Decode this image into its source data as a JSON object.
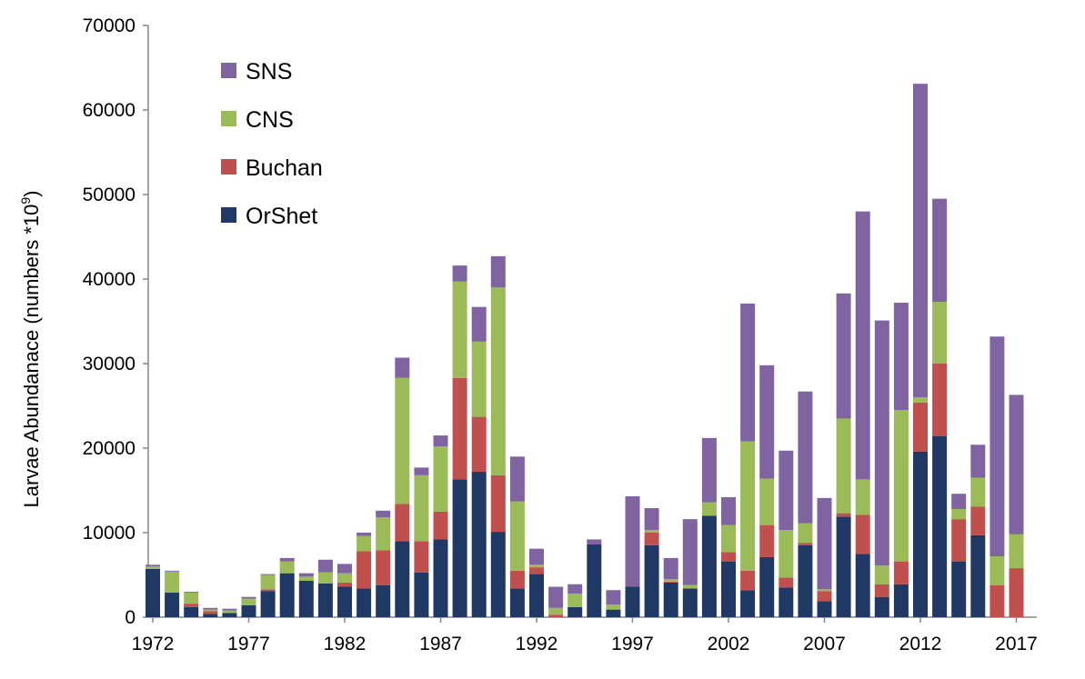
{
  "chart_data": {
    "type": "bar",
    "stacked": true,
    "title": "",
    "xlabel": "",
    "ylabel": "Larvae Abundanace (numbers *10",
    "ylabel_superscript": "9",
    "ylabel_suffix": ")",
    "ylim": [
      0,
      70000
    ],
    "yticks": [
      0,
      10000,
      20000,
      30000,
      40000,
      50000,
      60000,
      70000
    ],
    "xtick_labels": [
      "1972",
      "1977",
      "1982",
      "1987",
      "1992",
      "1997",
      "2002",
      "2007",
      "2012",
      "2017"
    ],
    "grid": false,
    "legend_position": "top-left",
    "categories": [
      1972,
      1973,
      1974,
      1975,
      1976,
      1977,
      1978,
      1979,
      1980,
      1981,
      1982,
      1983,
      1984,
      1985,
      1986,
      1987,
      1988,
      1989,
      1990,
      1991,
      1992,
      1993,
      1994,
      1995,
      1996,
      1997,
      1998,
      1999,
      2000,
      2001,
      2002,
      2003,
      2004,
      2005,
      2006,
      2007,
      2008,
      2009,
      2010,
      2011,
      2012,
      2013,
      2014,
      2015,
      2016,
      2017
    ],
    "series": [
      {
        "name": "OrShet",
        "color": "#1f3864",
        "values": [
          5700,
          2900,
          1200,
          400,
          500,
          1400,
          3100,
          5200,
          4300,
          4000,
          3600,
          3400,
          3800,
          9000,
          5300,
          9200,
          16300,
          17200,
          10100,
          3400,
          5100,
          0,
          1200,
          8600,
          900,
          3600,
          8500,
          4100,
          3400,
          12000,
          6600,
          3200,
          7100,
          3500,
          8500,
          1900,
          11900,
          7500,
          2400,
          3900,
          19600,
          21400,
          6600,
          9700,
          0,
          0
        ]
      },
      {
        "name": "Buchan",
        "color": "#c0504d",
        "values": [
          0,
          0,
          400,
          300,
          0,
          0,
          200,
          0,
          0,
          0,
          500,
          4400,
          4100,
          4400,
          3700,
          3300,
          12000,
          6500,
          6700,
          2100,
          800,
          300,
          0,
          0,
          0,
          0,
          1500,
          100,
          0,
          0,
          1100,
          2300,
          3800,
          1200,
          300,
          1200,
          400,
          4600,
          1500,
          2700,
          5800,
          8600,
          5000,
          3400,
          3800,
          5800
        ]
      },
      {
        "name": "CNS",
        "color": "#9bbb59",
        "values": [
          300,
          2500,
          1300,
          200,
          300,
          800,
          1700,
          1400,
          500,
          1300,
          1100,
          1800,
          3900,
          14900,
          7800,
          7700,
          11400,
          8900,
          22200,
          8200,
          300,
          800,
          1600,
          0,
          600,
          0,
          300,
          300,
          400,
          1600,
          3200,
          15300,
          5500,
          5600,
          2300,
          200,
          11200,
          4200,
          2200,
          17900,
          600,
          7300,
          1200,
          3400,
          3400,
          4000
        ]
      },
      {
        "name": "SNS",
        "color": "#8064a2",
        "values": [
          200,
          100,
          100,
          200,
          200,
          200,
          100,
          400,
          400,
          1500,
          1100,
          400,
          800,
          2400,
          900,
          1300,
          1900,
          4100,
          3700,
          5300,
          1900,
          2500,
          1100,
          600,
          1700,
          10700,
          2600,
          2500,
          7800,
          7600,
          3300,
          16300,
          13400,
          9400,
          15600,
          10800,
          14800,
          31700,
          29000,
          12700,
          37100,
          12200,
          1800,
          3900,
          26000,
          16500
        ]
      }
    ]
  }
}
